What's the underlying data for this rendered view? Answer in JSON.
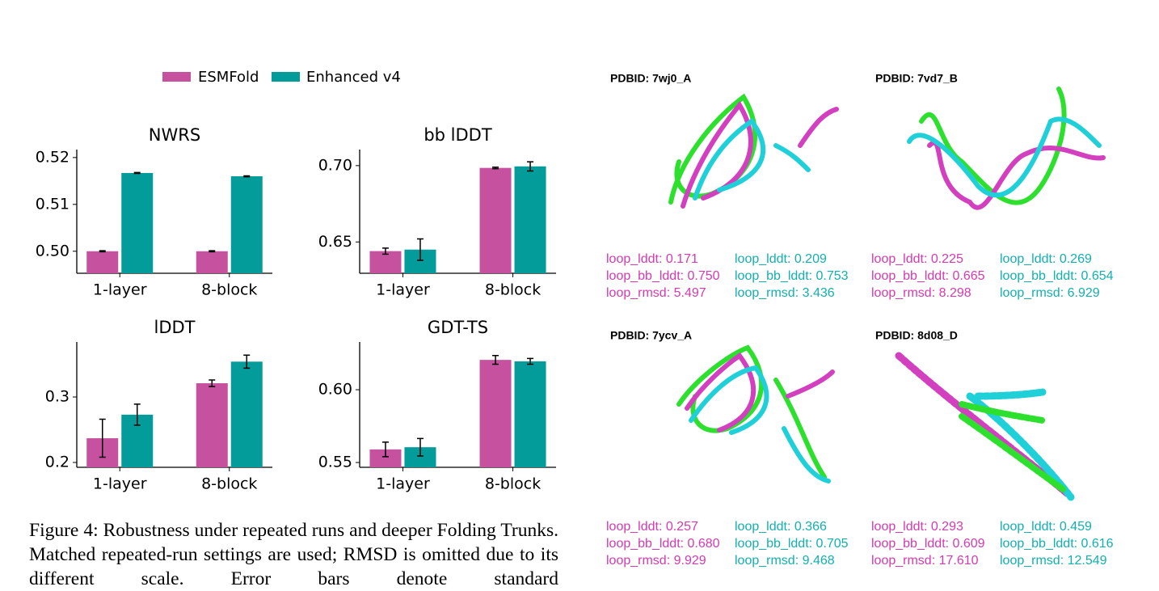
{
  "chart_data": [
    {
      "type": "bar",
      "title": "NWRS",
      "categories": [
        "1-layer",
        "8-block"
      ],
      "series": [
        {
          "name": "ESMFold",
          "color": "#c5519f",
          "values": [
            0.5,
            0.5
          ],
          "errors": [
            0.0001,
            0.0001
          ]
        },
        {
          "name": "Enhanced v4",
          "color": "#049c9a",
          "values": [
            0.5167,
            0.516
          ],
          "errors": [
            0.0001,
            0.0001
          ]
        }
      ],
      "ylim": [
        0.4953,
        0.5217
      ],
      "yticks": [
        {
          "value": 0.5,
          "label": "0.50"
        },
        0.51,
        0.52
      ]
    },
    {
      "type": "bar",
      "title": "bb lDDT",
      "categories": [
        "1-layer",
        "8-block"
      ],
      "series": [
        {
          "name": "ESMFold",
          "color": "#c5519f",
          "values": [
            0.644,
            0.6985
          ],
          "errors": [
            0.002,
            0.0005
          ]
        },
        {
          "name": "Enhanced v4",
          "color": "#049c9a",
          "values": [
            0.645,
            0.6995
          ],
          "errors": [
            0.007,
            0.003
          ]
        }
      ],
      "ylim": [
        0.6295,
        0.7105
      ],
      "yticks": [
        0.65,
        {
          "value": 0.7,
          "label": "0.70"
        }
      ]
    },
    {
      "type": "bar",
      "title": "lDDT",
      "categories": [
        "1-layer",
        "8-block"
      ],
      "series": [
        {
          "name": "ESMFold",
          "color": "#c5519f",
          "values": [
            0.237,
            0.321
          ],
          "errors": [
            0.029,
            0.005
          ]
        },
        {
          "name": "Enhanced v4",
          "color": "#049c9a",
          "values": [
            0.273,
            0.354
          ],
          "errors": [
            0.016,
            0.01
          ]
        }
      ],
      "ylim": [
        0.1926,
        0.384
      ],
      "yticks": [
        0.2,
        0.3
      ]
    },
    {
      "type": "bar",
      "title": "GDT-TS",
      "categories": [
        "1-layer",
        "8-block"
      ],
      "series": [
        {
          "name": "ESMFold",
          "color": "#c5519f",
          "values": [
            0.559,
            0.6205
          ],
          "errors": [
            0.005,
            0.003
          ]
        },
        {
          "name": "Enhanced v4",
          "color": "#049c9a",
          "values": [
            0.5605,
            0.6195
          ],
          "errors": [
            0.006,
            0.002
          ]
        }
      ],
      "ylim": [
        0.5467,
        0.6328
      ],
      "yticks": [
        0.55,
        {
          "value": 0.6,
          "label": "0.60"
        }
      ]
    }
  ],
  "caption": "Figure 4: Robustness under repeated runs and deeper Folding Trunks. Matched repeated-run settings are used; RMSD is omitted due to its different scale. Error bars denote standard",
  "panels": [
    {
      "title": "PDBID: 7wj0_A",
      "esmfold": [
        "loop_lddt: 0.171",
        "loop_bb_lddt: 0.750",
        "loop_rmsd: 5.497"
      ],
      "enhanced": [
        "loop_lddt: 0.209",
        "loop_bb_lddt: 0.753",
        "loop_rmsd: 3.436"
      ]
    },
    {
      "title": "PDBID: 7vd7_B",
      "esmfold": [
        "loop_lddt: 0.225",
        "loop_bb_lddt: 0.665",
        "loop_rmsd: 8.298"
      ],
      "enhanced": [
        "loop_lddt: 0.269",
        "loop_bb_lddt: 0.654",
        "loop_rmsd: 6.929"
      ]
    },
    {
      "title": "PDBID: 7ycv_A",
      "esmfold": [
        "loop_lddt: 0.257",
        "loop_bb_lddt: 0.680",
        "loop_rmsd: 9.929"
      ],
      "enhanced": [
        "loop_lddt: 0.366",
        "loop_bb_lddt: 0.705",
        "loop_rmsd: 9.468"
      ]
    },
    {
      "title": "PDBID: 8d08_D",
      "esmfold": [
        "loop_lddt: 0.293",
        "loop_bb_lddt: 0.609",
        "loop_rmsd: 17.610"
      ],
      "enhanced": [
        "loop_lddt: 0.459",
        "loop_bb_lddt: 0.616",
        "loop_rmsd: 12.549"
      ]
    }
  ]
}
